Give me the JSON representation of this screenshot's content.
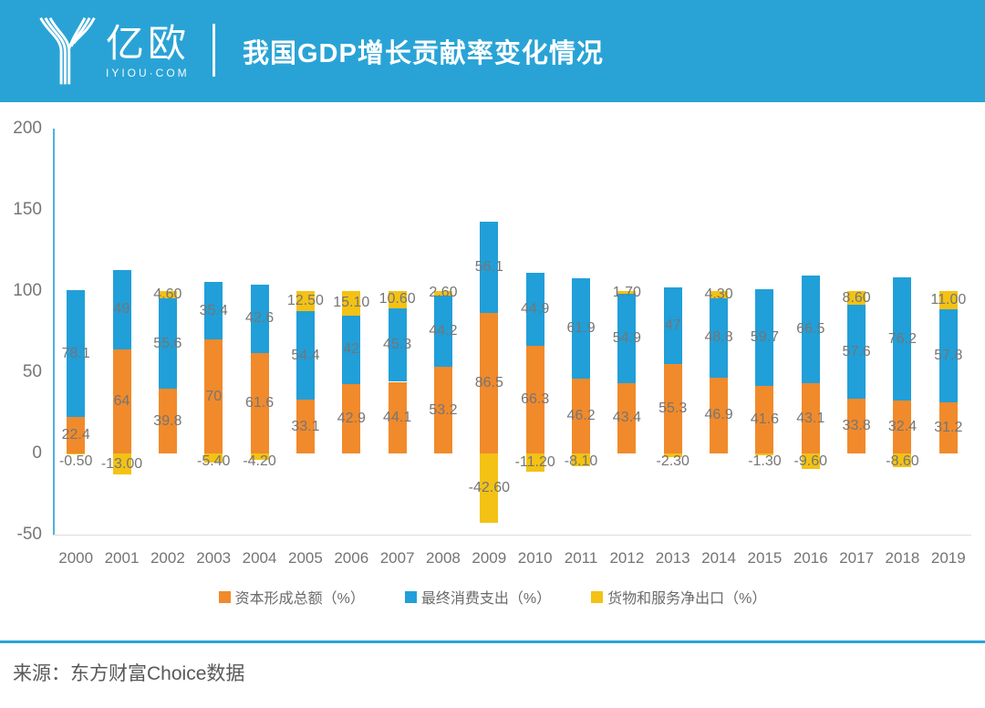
{
  "header": {
    "brand_name": "亿欧",
    "brand_domain": "IYIOU·COM",
    "title": "我国GDP增长贡献率变化情况"
  },
  "footer": {
    "source": "来源：东方财富Choice数据"
  },
  "colors": {
    "header_bg": "#29A3D6",
    "capital_orange": "#F18A2B",
    "consumption_blue": "#219FD8",
    "netexport_yellow": "#F3C214",
    "axis_line": "#54AFE0",
    "baseline_gray": "#DCDCDC",
    "label_gray": "#757575"
  },
  "chart_data": {
    "type": "bar",
    "stacked": true,
    "title": "",
    "xlabel": "",
    "ylabel": "",
    "ylim": [
      -50,
      200
    ],
    "y_ticks": [
      "200",
      "150",
      "100",
      "50",
      "0",
      "-50"
    ],
    "y_tick_values": [
      200,
      150,
      100,
      50,
      0,
      -50
    ],
    "grid": false,
    "legend_position": "bottom",
    "categories": [
      "2000",
      "2001",
      "2002",
      "2003",
      "2004",
      "2005",
      "2006",
      "2007",
      "2008",
      "2009",
      "2010",
      "2011",
      "2012",
      "2013",
      "2014",
      "2015",
      "2016",
      "2017",
      "2018",
      "2019"
    ],
    "series": [
      {
        "name": "资本形成总额（%）",
        "color_key": "capital_orange",
        "values": [
          22.4,
          64,
          39.8,
          70,
          61.6,
          33.1,
          42.9,
          44.1,
          53.2,
          86.5,
          66.3,
          46.2,
          43.4,
          55.3,
          46.9,
          41.6,
          43.1,
          33.8,
          32.4,
          31.2
        ],
        "labels": [
          "22.4",
          "64",
          "39.8",
          "70",
          "61.6",
          "33.1",
          "42.9",
          "44.1",
          "53.2",
          "86.5",
          "66.3",
          "46.2",
          "43.4",
          "55.3",
          "46.9",
          "41.6",
          "43.1",
          "33.8",
          "32.4",
          "31.2"
        ]
      },
      {
        "name": "最终消费支出（%）",
        "color_key": "consumption_blue",
        "values": [
          78.1,
          49,
          55.6,
          35.4,
          42.6,
          54.4,
          42,
          45.3,
          44.2,
          56.1,
          44.9,
          61.9,
          54.9,
          47,
          48.8,
          59.7,
          66.5,
          57.6,
          76.2,
          57.8
        ],
        "labels": [
          "78.1",
          "49",
          "55.6",
          "35.4",
          "42.6",
          "54.4",
          "42",
          "45.3",
          "44.2",
          "56.1",
          "44.9",
          "61.9",
          "54.9",
          "47",
          "48.8",
          "59.7",
          "66.5",
          "57.6",
          "76.2",
          "57.8"
        ]
      },
      {
        "name": "货物和服务净出口（%）",
        "color_key": "netexport_yellow",
        "values": [
          -0.5,
          -13,
          4.6,
          -5.4,
          -4.2,
          12.5,
          15.1,
          10.6,
          2.6,
          -42.6,
          -11.2,
          -8.1,
          1.7,
          -2.3,
          4.3,
          -1.3,
          -9.6,
          8.6,
          -8.6,
          11
        ],
        "labels": [
          "-0.50",
          "-13.00",
          "4.60",
          "-5.40",
          "-4.20",
          "12.50",
          "15.10",
          "10.60",
          "2.60",
          "-42.60",
          "-11.20",
          "-8.10",
          "1.70",
          "-2.30",
          "4.30",
          "-1.30",
          "-9.60",
          "8.60",
          "-8.60",
          "11.00"
        ]
      }
    ]
  }
}
